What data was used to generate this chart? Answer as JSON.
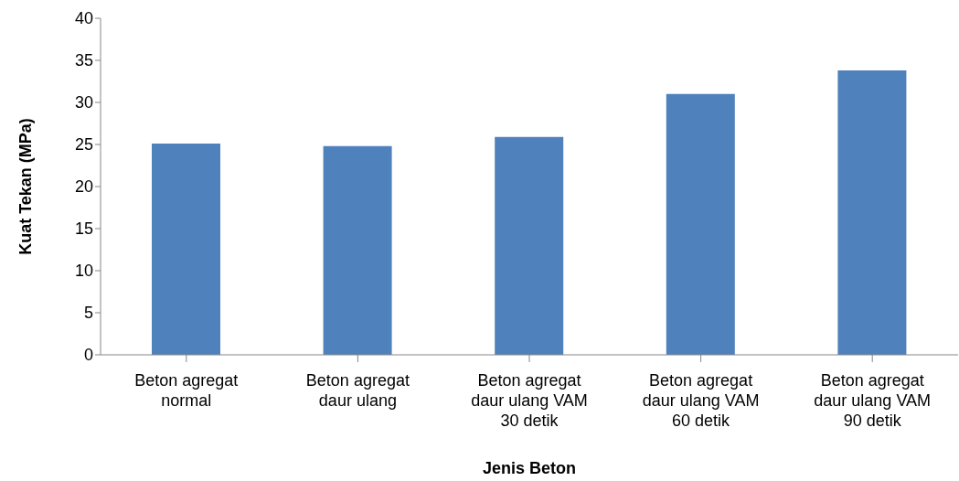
{
  "chart_data": {
    "type": "bar",
    "xlabel": "Jenis Beton",
    "ylabel": "Kuat Tekan (MPa)",
    "categories": [
      "Beton agregat normal",
      "Beton agregat daur ulang",
      "Beton agregat daur ulang VAM 30 detik",
      "Beton agregat daur ulang VAM 60 detik",
      "Beton agregat daur ulang VAM 90 detik"
    ],
    "values": [
      25.1,
      24.8,
      25.9,
      31.0,
      33.8
    ],
    "color": "#4f81bd",
    "ylim": [
      0,
      40
    ],
    "yticks": [
      0,
      5,
      10,
      15,
      20,
      25,
      30,
      35,
      40
    ],
    "grid": false,
    "legend": false
  }
}
